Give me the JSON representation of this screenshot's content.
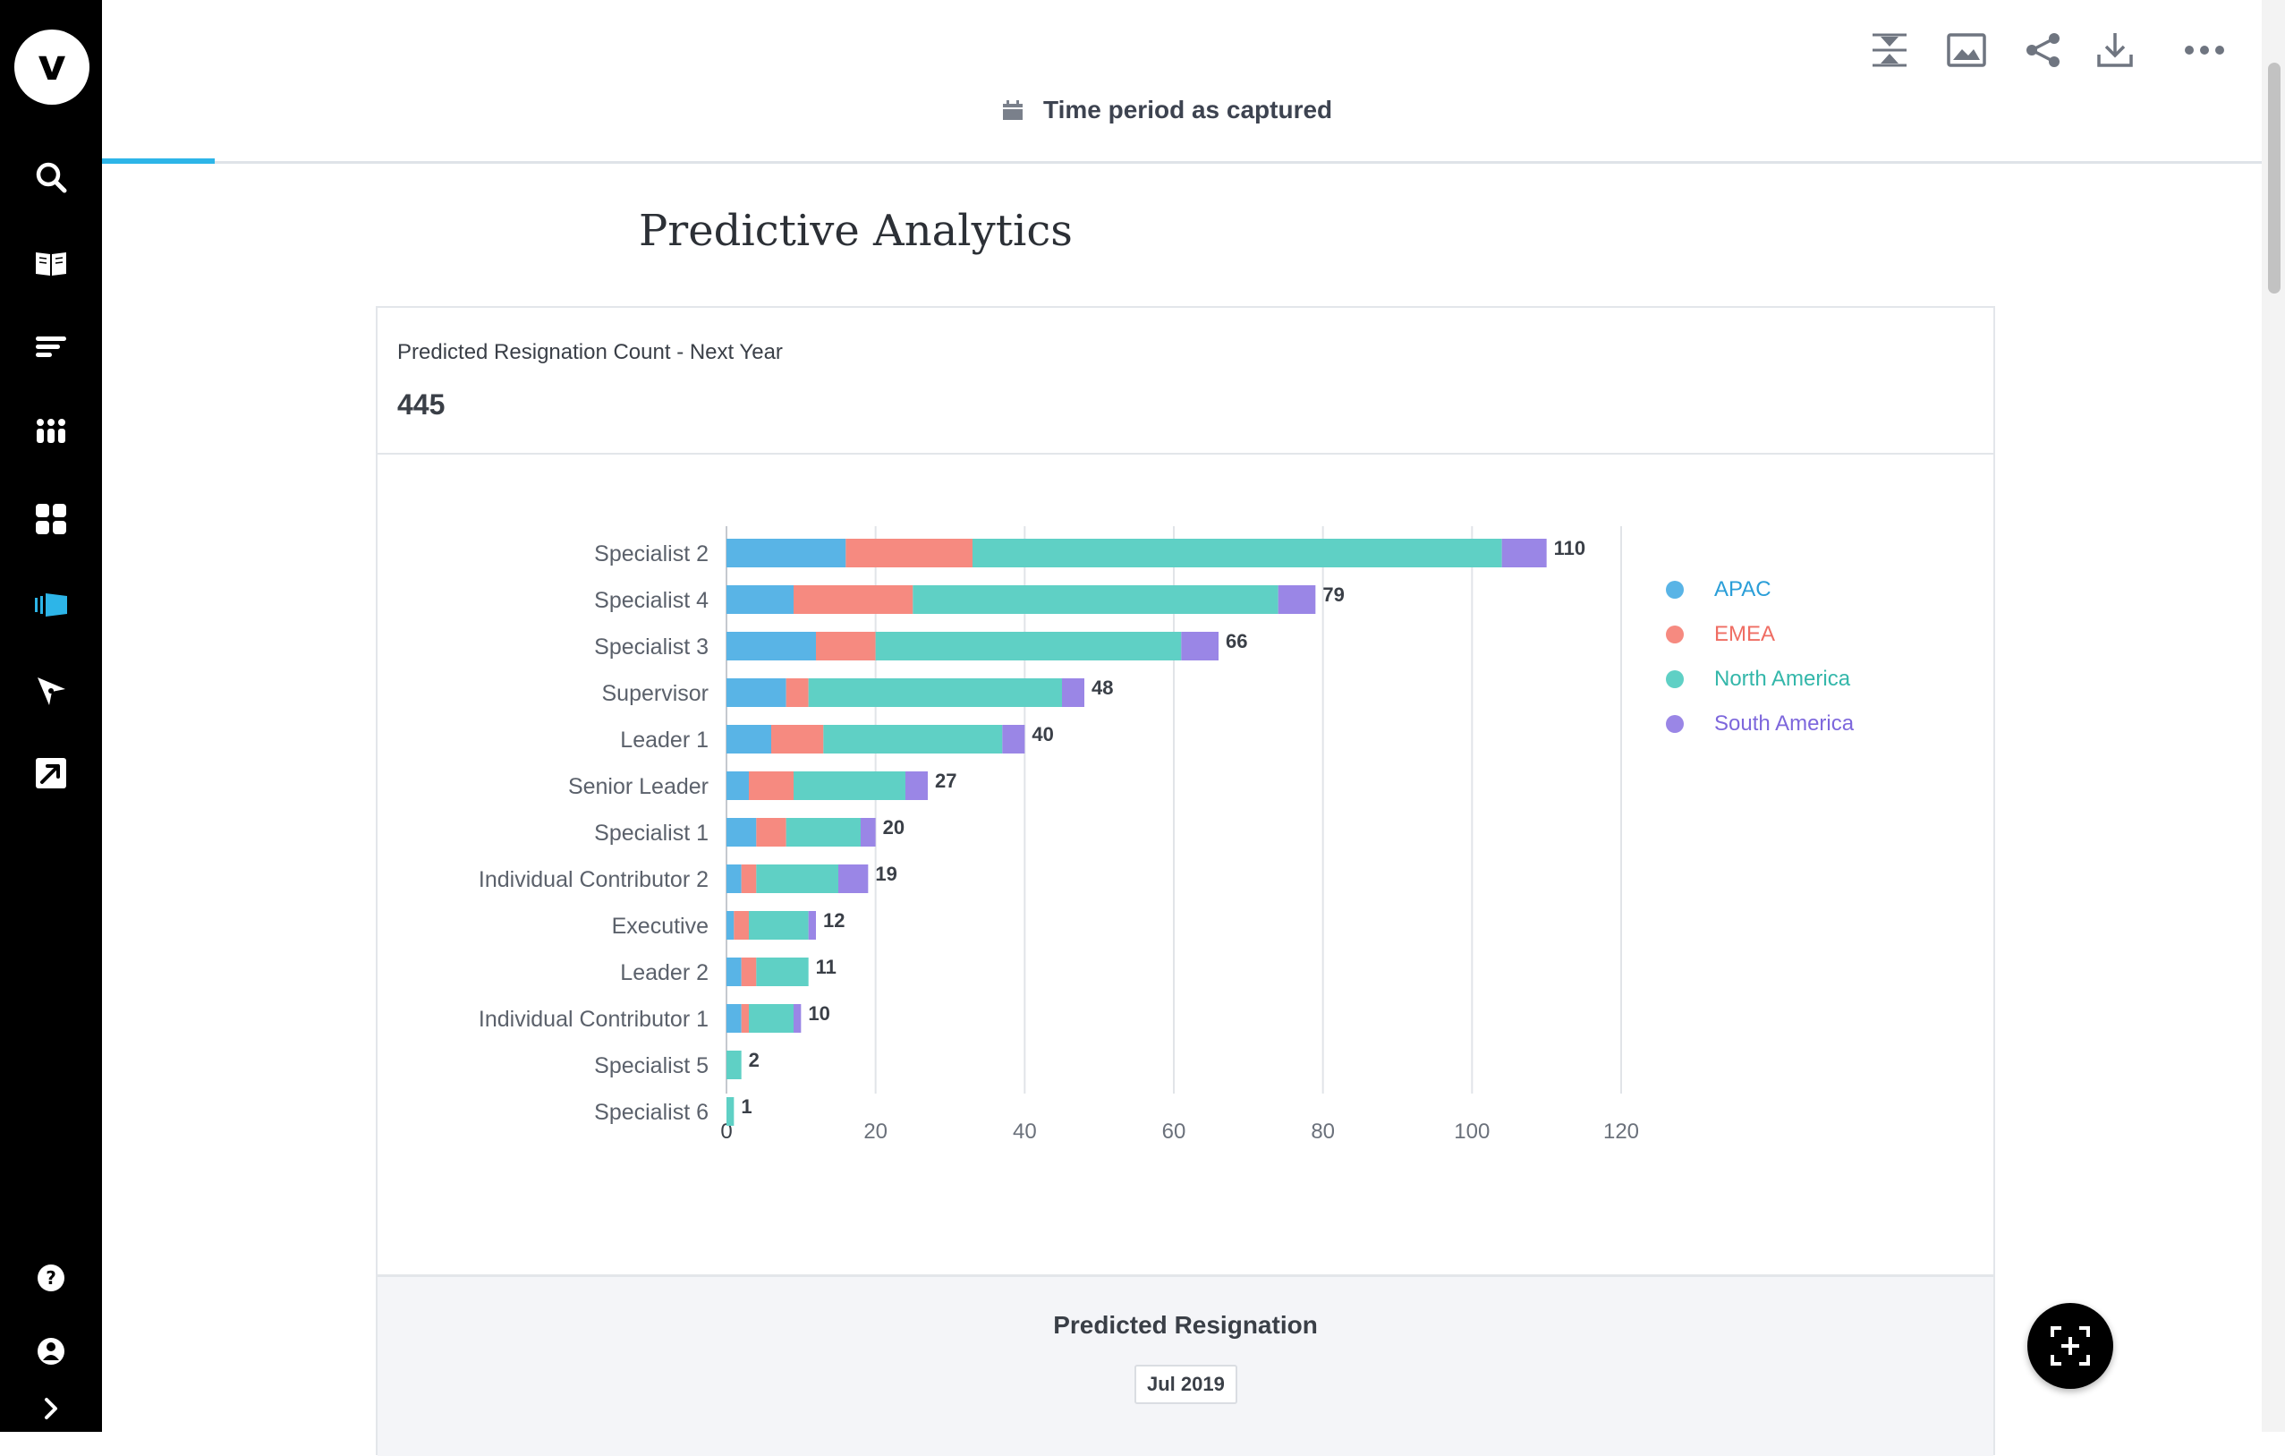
{
  "sidebar": {
    "logo_letter": "v",
    "items": [
      {
        "icon": "search-icon"
      },
      {
        "icon": "book-icon"
      },
      {
        "icon": "list-icon"
      },
      {
        "icon": "people-icon"
      },
      {
        "icon": "dashboard-icon"
      },
      {
        "icon": "storyboard-icon",
        "active": true
      },
      {
        "icon": "compass-icon"
      },
      {
        "icon": "external-link-icon"
      }
    ],
    "bottom": [
      {
        "icon": "help-icon"
      },
      {
        "icon": "account-icon"
      },
      {
        "icon": "expand-icon"
      }
    ]
  },
  "toolbar": {
    "period_label": "Time period as captured",
    "actions": [
      "collapse-icon",
      "image-icon",
      "share-icon",
      "download-icon",
      "more-icon"
    ]
  },
  "page": {
    "title": "Predictive Analytics"
  },
  "metric": {
    "label": "Predicted Resignation Count - Next Year",
    "value": "445"
  },
  "colors": {
    "APAC": "#59b4e6",
    "EMEA": "#f68a80",
    "North America": "#5fd0c5",
    "South America": "#9a86e6"
  },
  "chart_data": {
    "type": "bar",
    "orientation": "horizontal",
    "stacked": true,
    "categories": [
      "Specialist 2",
      "Specialist 4",
      "Specialist 3",
      "Supervisor",
      "Leader 1",
      "Senior Leader",
      "Specialist 1",
      "Individual Contributor 2",
      "Executive",
      "Leader 2",
      "Individual Contributor 1",
      "Specialist 5",
      "Specialist 6"
    ],
    "series": [
      {
        "name": "APAC",
        "values": [
          16,
          9,
          12,
          8,
          6,
          3,
          4,
          2,
          1,
          2,
          2,
          0,
          0
        ]
      },
      {
        "name": "EMEA",
        "values": [
          17,
          16,
          8,
          3,
          7,
          6,
          4,
          2,
          2,
          2,
          1,
          0,
          0
        ]
      },
      {
        "name": "North America",
        "values": [
          71,
          49,
          41,
          34,
          24,
          15,
          10,
          11,
          8,
          7,
          6,
          2,
          1
        ]
      },
      {
        "name": "South America",
        "values": [
          6,
          5,
          5,
          3,
          3,
          3,
          2,
          4,
          1,
          0,
          1,
          0,
          0
        ]
      }
    ],
    "totals": [
      110,
      79,
      66,
      48,
      40,
      27,
      20,
      19,
      12,
      11,
      10,
      2,
      1
    ],
    "xlim": [
      0,
      120
    ],
    "x_ticks": [
      0,
      20,
      40,
      60,
      80,
      100,
      120
    ],
    "grid": true,
    "legend_position": "right",
    "legend": [
      "APAC",
      "EMEA",
      "North America",
      "South America"
    ]
  },
  "sub_card": {
    "title": "Predicted Resignation",
    "date_chip": "Jul 2019"
  }
}
